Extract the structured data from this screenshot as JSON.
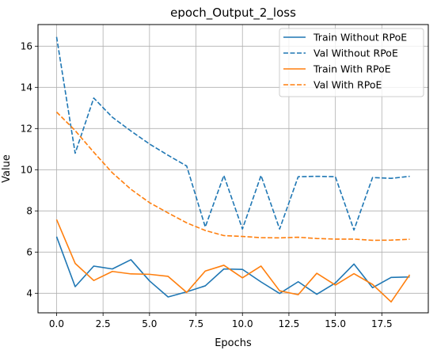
{
  "chart_data": {
    "type": "line",
    "title": "epoch_Output_2_loss",
    "xlabel": "Epochs",
    "ylabel": "Value",
    "xlim": [
      -1,
      20
    ],
    "ylim": [
      3.05,
      17.05
    ],
    "xticks": [
      0.0,
      2.5,
      5.0,
      7.5,
      10.0,
      12.5,
      15.0,
      17.5
    ],
    "xtick_labels": [
      "0.0",
      "2.5",
      "5.0",
      "7.5",
      "10.0",
      "12.5",
      "15.0",
      "17.5"
    ],
    "yticks": [
      4,
      6,
      8,
      10,
      12,
      14,
      16
    ],
    "ytick_labels": [
      "4",
      "6",
      "8",
      "10",
      "12",
      "14",
      "16"
    ],
    "grid": true,
    "legend_position": "top-right",
    "x": [
      0,
      1,
      2,
      3,
      4,
      5,
      6,
      7,
      8,
      9,
      10,
      11,
      12,
      13,
      14,
      15,
      16,
      17,
      18,
      19
    ],
    "series": [
      {
        "name": "Train Without RPoE",
        "color": "#1f77b4",
        "style": "solid",
        "values": [
          6.75,
          4.32,
          5.32,
          5.18,
          5.63,
          4.6,
          3.82,
          4.07,
          4.36,
          5.18,
          5.16,
          4.55,
          3.99,
          4.56,
          3.95,
          4.5,
          5.42,
          4.27,
          4.77,
          4.79
        ]
      },
      {
        "name": "Val Without RPoE",
        "color": "#1f77b4",
        "style": "dashed",
        "values": [
          16.45,
          10.8,
          13.48,
          12.55,
          11.88,
          11.25,
          10.7,
          10.18,
          7.22,
          9.72,
          7.12,
          9.72,
          7.12,
          9.66,
          9.68,
          9.66,
          7.07,
          9.62,
          9.58,
          9.68
        ]
      },
      {
        "name": "Train With RPoE",
        "color": "#ff7f0e",
        "style": "solid",
        "values": [
          7.58,
          5.45,
          4.62,
          5.06,
          4.94,
          4.92,
          4.82,
          4.04,
          5.08,
          5.36,
          4.75,
          5.32,
          4.12,
          3.93,
          4.97,
          4.4,
          4.95,
          4.43,
          3.58,
          4.9
        ]
      },
      {
        "name": "Val With RPoE",
        "color": "#ff7f0e",
        "style": "dashed",
        "values": [
          12.8,
          11.9,
          10.85,
          9.85,
          9.05,
          8.4,
          7.9,
          7.42,
          7.05,
          6.8,
          6.76,
          6.7,
          6.69,
          6.72,
          6.66,
          6.63,
          6.63,
          6.57,
          6.58,
          6.62
        ]
      }
    ]
  }
}
